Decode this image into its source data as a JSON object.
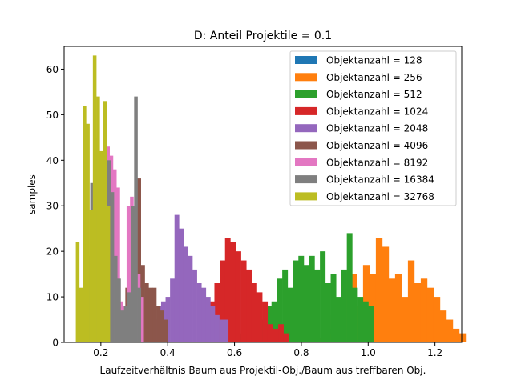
{
  "chart_data": {
    "type": "bar",
    "subtype": "overlaid-histogram",
    "title": "D: Anteil Projektile = 0.1",
    "xlabel": "Laufzeitverhältnis Baum aus Projektil-Obj./Baum aus treffbaren Obj.",
    "ylabel": "samples",
    "xlim": [
      0.09,
      1.28
    ],
    "ylim": [
      0,
      65
    ],
    "xticks": [
      0.2,
      0.4,
      0.6,
      0.8,
      1.0,
      1.2
    ],
    "xtick_labels": [
      "0.2",
      "0.4",
      "0.6",
      "0.8",
      "1.0",
      "1.2"
    ],
    "yticks": [
      0,
      10,
      20,
      30,
      40,
      50,
      60
    ],
    "ytick_labels": [
      "0",
      "10",
      "20",
      "30",
      "40",
      "50",
      "60"
    ],
    "legend_position": "top-right",
    "grid": false,
    "series": [
      {
        "name": "Objektanzahl = 128",
        "color": "#1f77b4",
        "start": 0.866,
        "width": 0.0192,
        "values": [
          4,
          3,
          8,
          12,
          8,
          4,
          2,
          6,
          12,
          6,
          4,
          1,
          1,
          1,
          0,
          0,
          1,
          2,
          0,
          1
        ]
      },
      {
        "name": "Objektanzahl = 256",
        "color": "#ff7f0e",
        "start": 0.735,
        "width": 0.0192,
        "values": [
          3,
          4,
          4,
          2,
          3,
          3,
          1,
          2,
          6,
          5,
          15,
          15,
          8,
          17,
          15,
          23,
          21,
          14,
          15,
          10,
          18,
          13,
          14,
          12,
          10,
          7,
          5,
          3,
          2,
          0
        ]
      },
      {
        "name": "Objektanzahl = 512",
        "color": "#2ca02c",
        "start": 0.598,
        "width": 0.0161,
        "values": [
          2,
          2,
          2,
          4,
          3,
          5,
          8,
          9,
          14,
          16,
          12,
          18,
          19,
          17,
          19,
          16,
          20,
          13,
          15,
          10,
          16,
          24,
          12,
          10,
          9,
          8
        ]
      },
      {
        "name": "Objektanzahl = 1024",
        "color": "#d62728",
        "start": 0.508,
        "width": 0.0159,
        "values": [
          7,
          9,
          13,
          18,
          23,
          22,
          20,
          18,
          16,
          13,
          11,
          9,
          4,
          3,
          4,
          2
        ]
      },
      {
        "name": "Objektanzahl = 2048",
        "color": "#9467bd",
        "start": 0.34,
        "width": 0.0134,
        "values": [
          3,
          5,
          8,
          9,
          10,
          14,
          28,
          25,
          21,
          19,
          16,
          13,
          12,
          10,
          8,
          6,
          5,
          5
        ]
      },
      {
        "name": "Objektanzahl = 4096",
        "color": "#8c564b",
        "start": 0.25,
        "width": 0.0116,
        "values": [
          3,
          5,
          12,
          15,
          20,
          36,
          17,
          13,
          12,
          12,
          8,
          7,
          5
        ]
      },
      {
        "name": "Objektanzahl = 8192",
        "color": "#e377c2",
        "start": 0.175,
        "width": 0.0102,
        "values": [
          6,
          11,
          16,
          31,
          43,
          41,
          38,
          34,
          9,
          8,
          30,
          32,
          22,
          15,
          10
        ]
      },
      {
        "name": "Objektanzahl = 16384",
        "color": "#7f7f7f",
        "start": 0.148,
        "width": 0.0101,
        "values": [
          12,
          19,
          35,
          45,
          35,
          23,
          38,
          40,
          33,
          19,
          14,
          7,
          8,
          11,
          30,
          54,
          12
        ]
      },
      {
        "name": "Objektanzahl = 32768",
        "color": "#bcbd22",
        "start": 0.125,
        "width": 0.0102,
        "values": [
          22,
          12,
          52,
          48,
          29,
          63,
          54,
          42,
          53,
          30
        ]
      }
    ]
  }
}
